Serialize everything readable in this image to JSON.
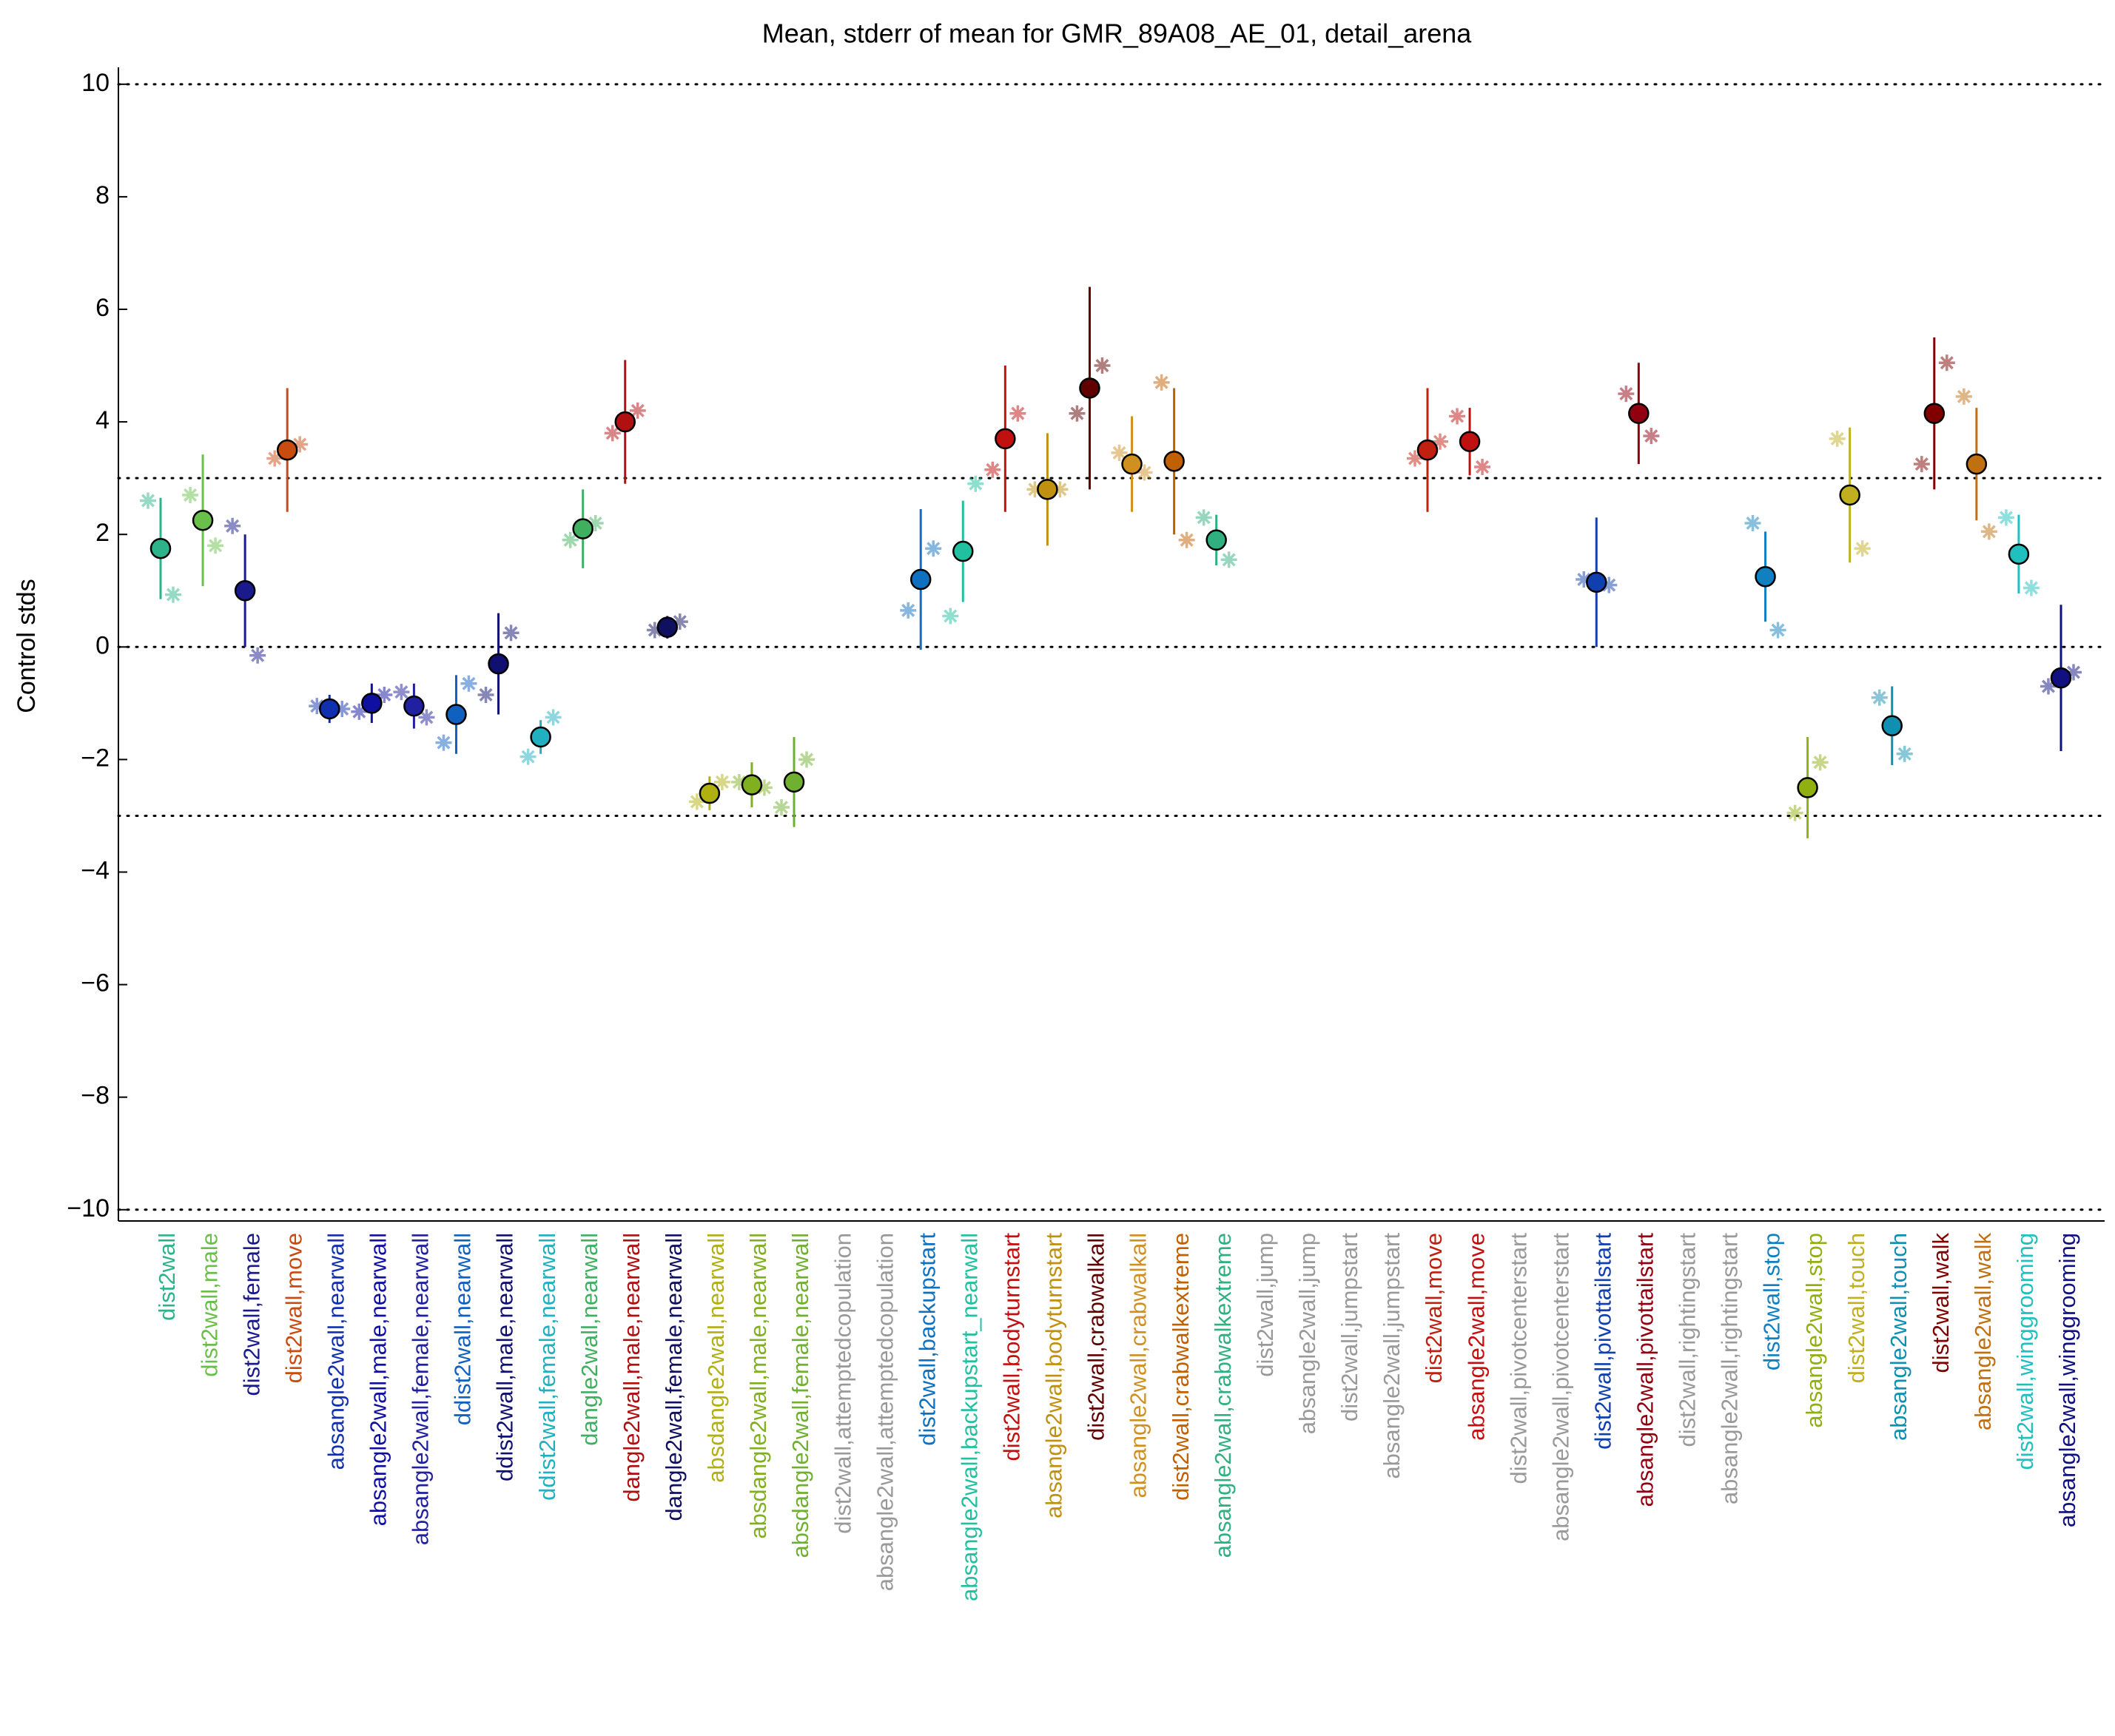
{
  "chart_data": {
    "type": "errorbar",
    "title": "Mean, stderr of mean for GMR_89A08_AE_01, detail_arena",
    "y_label": "Control stds",
    "ylim": [
      -10.2,
      10.3
    ],
    "yticks": [
      {
        "value": -10,
        "label": "−10"
      },
      {
        "value": -8,
        "label": "−8"
      },
      {
        "value": -6,
        "label": "−6"
      },
      {
        "value": -4,
        "label": "−4"
      },
      {
        "value": -2,
        "label": "−2"
      },
      0,
      2,
      4,
      6,
      8,
      10
    ],
    "reference_lines": [
      10,
      3,
      0,
      -3,
      -10
    ],
    "categories": [
      "dist2wall",
      "dist2wall,male",
      "dist2wall,female",
      "dist2wall,move",
      "absangle2wall,nearwall",
      "absangle2wall,male,nearwall",
      "absangle2wall,female,nearwall",
      "ddist2wall,nearwall",
      "ddist2wall,male,nearwall",
      "ddist2wall,female,nearwall",
      "dangle2wall,nearwall",
      "dangle2wall,male,nearwall",
      "dangle2wall,female,nearwall",
      "absdangle2wall,nearwall",
      "absdangle2wall,male,nearwall",
      "absdangle2wall,female,nearwall",
      "dist2wall,attemptedcopulation",
      "absangle2wall,attemptedcopulation",
      "dist2wall,backupstart",
      "absangle2wall,backupstart_nearwall",
      "dist2wall,bodyturnstart",
      "absangle2wall,bodyturnstart",
      "dist2wall,crabwalkall",
      "absangle2wall,crabwalkall",
      "dist2wall,crabwalkextreme",
      "absangle2wall,crabwalkextreme",
      "dist2wall,jump",
      "absangle2wall,jump",
      "dist2wall,jumpstart",
      "absangle2wall,jumpstart",
      "dist2wall,move",
      "absangle2wall,move",
      "dist2wall,pivotcenterstart",
      "absangle2wall,pivotcenterstart",
      "dist2wall,pivottailstart",
      "absangle2wall,pivottailstart",
      "dist2wall,rightingstart",
      "absangle2wall,rightingstart",
      "dist2wall,stop",
      "absangle2wall,stop",
      "dist2wall,touch",
      "absangle2wall,touch",
      "dist2wall,walk",
      "absangle2wall,walk",
      "dist2wall,winggrooming",
      "absangle2wall,winggrooming"
    ],
    "values": [
      1.75,
      2.25,
      1.0,
      3.5,
      -1.1,
      -1.0,
      -1.05,
      -1.2,
      -0.3,
      -1.6,
      2.1,
      4.0,
      0.35,
      -2.6,
      -2.45,
      -2.4,
      null,
      null,
      1.2,
      1.7,
      3.7,
      2.8,
      4.6,
      3.25,
      3.3,
      1.9,
      null,
      null,
      null,
      null,
      3.5,
      3.65,
      null,
      null,
      1.15,
      4.15,
      null,
      null,
      1.25,
      -2.5,
      2.7,
      -1.4,
      4.15,
      3.25,
      1.65,
      -0.55
    ],
    "errors": [
      0.9,
      1.17,
      1.0,
      1.1,
      0.25,
      0.35,
      0.4,
      0.7,
      0.9,
      0.3,
      0.7,
      1.1,
      0.2,
      0.3,
      0.4,
      0.8,
      null,
      null,
      1.25,
      0.9,
      1.3,
      1.0,
      1.8,
      0.85,
      1.3,
      0.45,
      null,
      null,
      null,
      null,
      1.1,
      0.6,
      null,
      null,
      1.15,
      0.9,
      null,
      null,
      0.8,
      0.9,
      1.2,
      0.7,
      1.35,
      1.0,
      0.7,
      1.3
    ],
    "star_values": [
      [
        2.6,
        0.93
      ],
      [
        2.7,
        1.8
      ],
      [
        2.15,
        -0.15
      ],
      [
        3.35,
        3.6
      ],
      [
        -1.05,
        -1.1
      ],
      [
        -1.15,
        -0.85
      ],
      [
        -0.8,
        -1.25
      ],
      [
        -1.7,
        -0.65
      ],
      [
        -0.85,
        0.25
      ],
      [
        -1.95,
        -1.25
      ],
      [
        1.9,
        2.2
      ],
      [
        3.8,
        4.2
      ],
      [
        0.3,
        0.45
      ],
      [
        -2.75,
        -2.4
      ],
      [
        -2.4,
        -2.5
      ],
      [
        -2.85,
        -2.0
      ],
      [
        null,
        null
      ],
      [
        null,
        null
      ],
      [
        0.65,
        1.75
      ],
      [
        0.55,
        2.9
      ],
      [
        3.15,
        4.15
      ],
      [
        2.8,
        2.8
      ],
      [
        4.15,
        5.0
      ],
      [
        3.45,
        3.1
      ],
      [
        4.7,
        1.9
      ],
      [
        2.3,
        1.55
      ],
      [
        null,
        null
      ],
      [
        null,
        null
      ],
      [
        null,
        null
      ],
      [
        null,
        null
      ],
      [
        3.35,
        3.65
      ],
      [
        4.1,
        3.2
      ],
      [
        null,
        null
      ],
      [
        null,
        null
      ],
      [
        1.2,
        1.1
      ],
      [
        4.5,
        3.75
      ],
      [
        null,
        null
      ],
      [
        null,
        null
      ],
      [
        2.2,
        0.3
      ],
      [
        -2.95,
        -2.05
      ],
      [
        3.7,
        1.75
      ],
      [
        -0.9,
        -1.9
      ],
      [
        3.25,
        5.05
      ],
      [
        4.45,
        2.05
      ],
      [
        2.3,
        1.05
      ],
      [
        -0.7,
        -0.45
      ]
    ],
    "colors": [
      "#2db38a",
      "#6abf4b",
      "#1a1a8c",
      "#c84b10",
      "#1030b0",
      "#1010a0",
      "#2020a0",
      "#1060c0",
      "#101070",
      "#20b0c0",
      "#40b060",
      "#b01010",
      "#101060",
      "#b0b010",
      "#80b020",
      "#70b030",
      "#999999",
      "#999999",
      "#1070c0",
      "#20c0a0",
      "#c01010",
      "#c09010",
      "#600000",
      "#d09020",
      "#c06000",
      "#30b080",
      "#999999",
      "#999999",
      "#999999",
      "#999999",
      "#c02010",
      "#c01010",
      "#999999",
      "#999999",
      "#1040b0",
      "#900010",
      "#999999",
      "#999999",
      "#1080c0",
      "#90b010",
      "#c0b020",
      "#1090b0",
      "#800000",
      "#c07010",
      "#20c0c0",
      "#101080"
    ]
  }
}
